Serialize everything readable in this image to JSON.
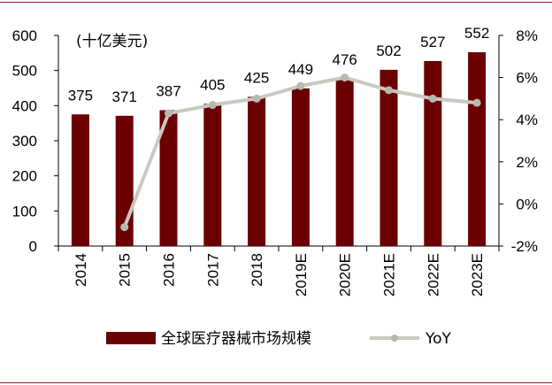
{
  "chart_data": {
    "type": "bar",
    "unit_label": "(十亿美元)",
    "categories": [
      "2014",
      "2015",
      "2016",
      "2017",
      "2018",
      "2019E",
      "2020E",
      "2021E",
      "2022E",
      "2023E"
    ],
    "series": [
      {
        "name": "全球医疗器械市场规模",
        "type": "bar",
        "axis": "left",
        "color": "#6b0000",
        "values": [
          375,
          371,
          387,
          405,
          425,
          449,
          476,
          502,
          527,
          552
        ],
        "data_labels": [
          "375",
          "371",
          "387",
          "405",
          "425",
          "449",
          "476",
          "502",
          "527",
          "552"
        ]
      },
      {
        "name": "YoY",
        "type": "line",
        "axis": "right",
        "color": "#c9c9c1",
        "values": [
          null,
          -1.1,
          4.3,
          4.7,
          5.0,
          5.6,
          6.0,
          5.4,
          5.0,
          4.8
        ]
      }
    ],
    "y_left": {
      "min": 0,
      "max": 600,
      "step": 100,
      "ticks": [
        "0",
        "100",
        "200",
        "300",
        "400",
        "500",
        "600"
      ]
    },
    "y_right": {
      "min": -2,
      "max": 8,
      "step": 2,
      "ticks": [
        "-2%",
        "0%",
        "2%",
        "4%",
        "6%",
        "8%"
      ]
    },
    "grid": false,
    "legend_position": "bottom"
  }
}
